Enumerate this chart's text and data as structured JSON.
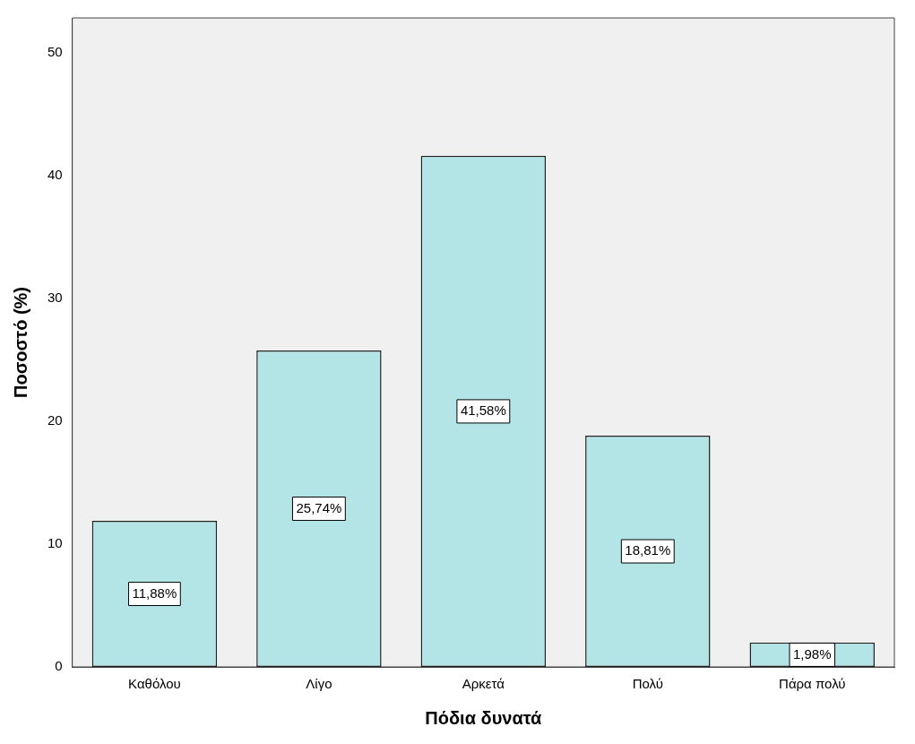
{
  "chart_data": {
    "type": "bar",
    "xlabel": "Πόδια δυνατά",
    "ylabel": "Ποσοστό (%)",
    "categories": [
      "Καθόλου",
      "Λίγο",
      "Αρκετά",
      "Πολύ",
      "Πάρα πολύ"
    ],
    "values": [
      11.88,
      25.74,
      41.58,
      18.81,
      1.98
    ],
    "value_labels": [
      "11,88%",
      "25,74%",
      "41,58%",
      "18,81%",
      "1,98%"
    ],
    "color": "#b3e5e6",
    "ylim": [
      0,
      52.8
    ],
    "yticks": [
      0,
      10,
      20,
      30,
      40,
      50
    ],
    "grid": false,
    "legend": false
  }
}
